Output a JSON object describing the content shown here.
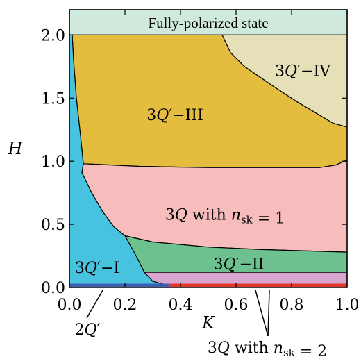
{
  "chart_data": {
    "type": "area",
    "title": "",
    "xlabel": "K",
    "ylabel": "H",
    "xlim": [
      0.0,
      1.0
    ],
    "ylim": [
      0.0,
      2.2
    ],
    "x_ticks": [
      "0.0",
      "0.2",
      "0.4",
      "0.6",
      "0.8",
      "1.0"
    ],
    "y_ticks": [
      "0.0",
      "0.5",
      "1.0",
      "1.5",
      "2.0"
    ],
    "x_tick_values": [
      0.0,
      0.2,
      0.4,
      0.6,
      0.8,
      1.0
    ],
    "y_tick_values": [
      0.0,
      0.5,
      1.0,
      1.5,
      2.0
    ],
    "grid": false,
    "regions": [
      {
        "id": "fully-polarized",
        "label": "Fully-polarized state",
        "color": "#cfe9dd",
        "polygon": [
          [
            0.0,
            2.0
          ],
          [
            1.0,
            2.0
          ],
          [
            1.0,
            2.2
          ],
          [
            0.0,
            2.2
          ]
        ]
      },
      {
        "id": "3q-prime-iv",
        "label": "3Q′−IV",
        "color": "#e6e0b8",
        "polygon": [
          [
            0.55,
            2.0
          ],
          [
            1.0,
            2.0
          ],
          [
            1.0,
            1.27
          ],
          [
            0.95,
            1.3
          ],
          [
            0.82,
            1.47
          ],
          [
            0.73,
            1.6
          ],
          [
            0.63,
            1.75
          ],
          [
            0.58,
            1.86
          ]
        ]
      },
      {
        "id": "3q-prime-iii",
        "label": "3Q′−III",
        "color": "#e4bd3e",
        "polygon": [
          [
            0.01,
            2.0
          ],
          [
            0.55,
            2.0
          ],
          [
            0.58,
            1.86
          ],
          [
            0.63,
            1.75
          ],
          [
            0.73,
            1.6
          ],
          [
            0.82,
            1.47
          ],
          [
            0.95,
            1.3
          ],
          [
            1.0,
            1.27
          ],
          [
            1.0,
            1.01
          ],
          [
            0.96,
            0.97
          ],
          [
            0.9,
            0.95
          ],
          [
            0.5,
            0.95
          ],
          [
            0.25,
            0.96
          ],
          [
            0.05,
            0.98
          ],
          [
            0.04,
            1.2
          ],
          [
            0.025,
            1.5
          ],
          [
            0.015,
            1.8
          ]
        ]
      },
      {
        "id": "3q-nsk-1",
        "label": "3Q with n_sk = 1",
        "color": "#f7bcbc",
        "polygon": [
          [
            0.05,
            0.98
          ],
          [
            0.25,
            0.96
          ],
          [
            0.5,
            0.95
          ],
          [
            0.9,
            0.95
          ],
          [
            0.96,
            0.97
          ],
          [
            1.0,
            1.01
          ],
          [
            1.0,
            0.28
          ],
          [
            0.7,
            0.3
          ],
          [
            0.5,
            0.32
          ],
          [
            0.3,
            0.36
          ],
          [
            0.2,
            0.41
          ],
          [
            0.16,
            0.48
          ],
          [
            0.12,
            0.6
          ],
          [
            0.08,
            0.75
          ],
          [
            0.045,
            0.91
          ]
        ]
      },
      {
        "id": "3q-prime-ii",
        "label": "3Q′−II",
        "color": "#6cc18f",
        "polygon": [
          [
            0.2,
            0.41
          ],
          [
            0.3,
            0.36
          ],
          [
            0.5,
            0.32
          ],
          [
            0.7,
            0.3
          ],
          [
            1.0,
            0.28
          ],
          [
            1.0,
            0.12
          ],
          [
            0.27,
            0.12
          ],
          [
            0.24,
            0.25
          ]
        ]
      },
      {
        "id": "3q-prime-i",
        "label": "3Q′−I",
        "color": "#47c3df",
        "polygon": [
          [
            0.0,
            2.0
          ],
          [
            0.01,
            2.0
          ],
          [
            0.015,
            1.8
          ],
          [
            0.025,
            1.5
          ],
          [
            0.04,
            1.2
          ],
          [
            0.05,
            0.98
          ],
          [
            0.045,
            0.91
          ],
          [
            0.08,
            0.75
          ],
          [
            0.12,
            0.6
          ],
          [
            0.16,
            0.48
          ],
          [
            0.2,
            0.41
          ],
          [
            0.24,
            0.25
          ],
          [
            0.27,
            0.12
          ],
          [
            0.3,
            0.05
          ],
          [
            0.35,
            0.02
          ],
          [
            0.0,
            0.02
          ]
        ]
      },
      {
        "id": "3q-nsk-2-pink",
        "label": "3Q with n_sk = 2",
        "color": "#d8a4d0",
        "polygon": [
          [
            0.27,
            0.12
          ],
          [
            1.0,
            0.12
          ],
          [
            1.0,
            0.02
          ],
          [
            0.35,
            0.02
          ],
          [
            0.3,
            0.05
          ]
        ]
      },
      {
        "id": "2q-prime-band",
        "label": "2Q′",
        "color": "#3c5fb4",
        "polygon": [
          [
            0.0,
            0.0
          ],
          [
            0.36,
            0.0
          ],
          [
            0.36,
            0.03
          ],
          [
            0.0,
            0.03
          ]
        ]
      },
      {
        "id": "3q-nsk-2-red",
        "label": "3Q with n_sk = 2",
        "color": "#e0362b",
        "polygon": [
          [
            0.36,
            0.0
          ],
          [
            1.0,
            0.0
          ],
          [
            1.0,
            0.03
          ],
          [
            0.36,
            0.03
          ]
        ]
      }
    ],
    "inside_labels": [
      {
        "text": "Fully-polarized state",
        "x": 0.5,
        "y": 2.1
      },
      {
        "text": "3Q′−IV",
        "x": 0.84,
        "y": 1.72
      },
      {
        "text": "3Q′−III",
        "x": 0.38,
        "y": 1.37
      },
      {
        "text": "3Q with n_sk = 1",
        "x": 0.56,
        "y": 0.58
      },
      {
        "text": "3Q′−II",
        "x": 0.61,
        "y": 0.19
      },
      {
        "text": "3Q′−I",
        "x": 0.1,
        "y": 0.16
      }
    ],
    "outside_labels": [
      {
        "text": "2Q′",
        "points_to": [
          0.12,
          0.0
        ]
      },
      {
        "text": "3Q with n_sk = 2",
        "points_to": [
          [
            0.67,
            0.0
          ],
          [
            0.72,
            0.0
          ]
        ]
      }
    ]
  }
}
